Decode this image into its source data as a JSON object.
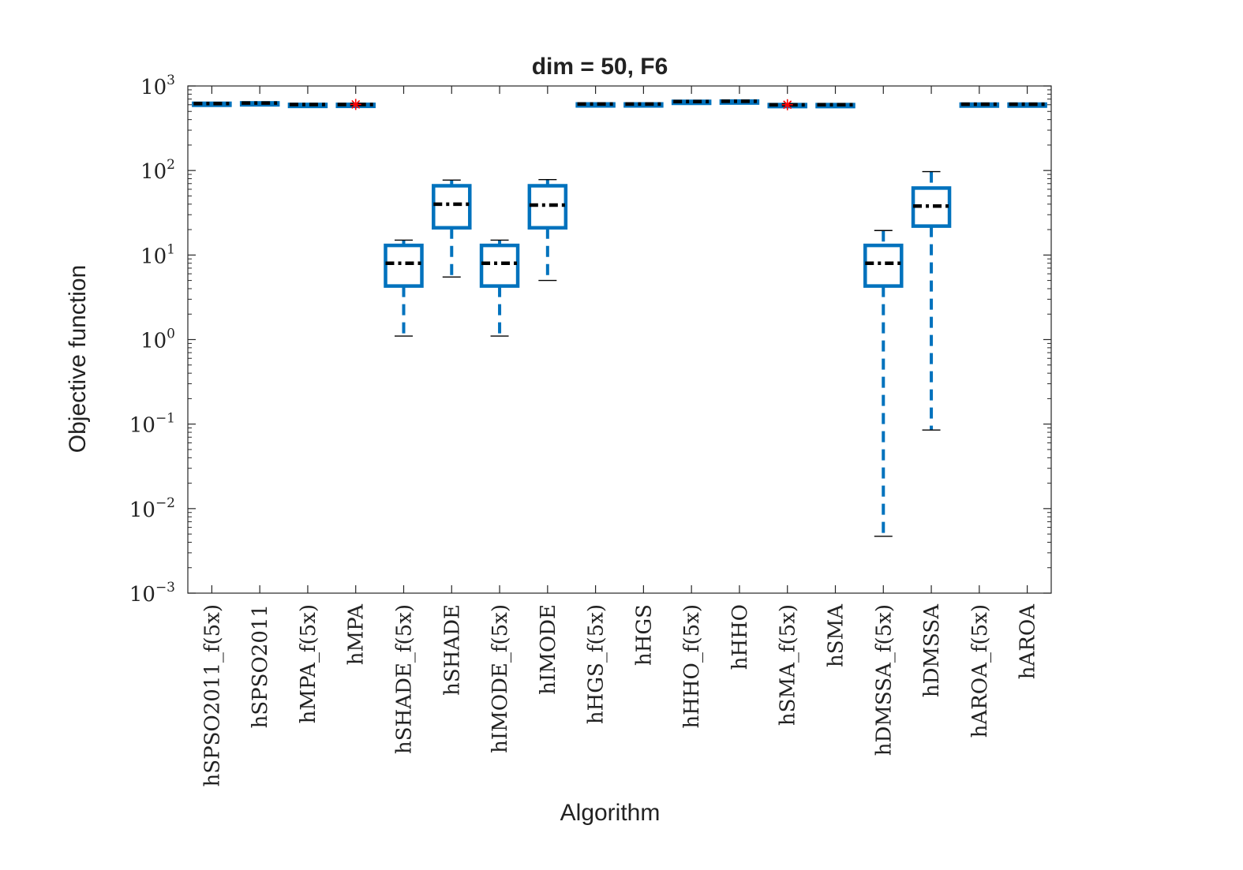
{
  "chart_data": {
    "type": "boxplot",
    "title": "dim = 50,  F6",
    "xlabel": "Algorithm",
    "ylabel": "Objective function",
    "yscale": "log",
    "ylim": [
      0.001,
      1000
    ],
    "yticks": [
      {
        "base": "10",
        "exp": "3"
      },
      {
        "base": "10",
        "exp": "2"
      },
      {
        "base": "10",
        "exp": "1"
      },
      {
        "base": "10",
        "exp": "0"
      },
      {
        "base": "10",
        "exp": "−1"
      },
      {
        "base": "10",
        "exp": "−2"
      },
      {
        "base": "10",
        "exp": "−3"
      }
    ],
    "box_color": "#0072BD",
    "median_color": "#000000",
    "outlier_color": "#FF0000",
    "categories": [
      "hSPSO2011_f(5x)",
      "hSPSO2011",
      "hMPA_f(5x)",
      "hMPA",
      "hSHADE_f(5x)",
      "hSHADE",
      "hIMODE_f(5x)",
      "hIMODE",
      "hHGS_f(5x)",
      "hHGS",
      "hHHO_f(5x)",
      "hHHO",
      "hSMA_f(5x)",
      "hSMA",
      "hDMSSA_f(5x)",
      "hDMSSA",
      "hAROA_f(5x)",
      "hAROA"
    ],
    "boxes": [
      {
        "min": 615,
        "q1": 616,
        "median": 620,
        "q3": 624,
        "max": 626,
        "outliers": []
      },
      {
        "min": 625,
        "q1": 626,
        "median": 628,
        "q3": 631,
        "max": 632,
        "outliers": []
      },
      {
        "min": 600,
        "q1": 601,
        "median": 603,
        "q3": 605,
        "max": 606,
        "outliers": []
      },
      {
        "min": 600,
        "q1": 601,
        "median": 604,
        "q3": 606,
        "max": 607,
        "outliers": [
          605
        ]
      },
      {
        "min": 1.1,
        "q1": 4.3,
        "median": 8,
        "q3": 13,
        "max": 15,
        "outliers": []
      },
      {
        "min": 5.5,
        "q1": 21,
        "median": 40,
        "q3": 66,
        "max": 77,
        "outliers": []
      },
      {
        "min": 1.1,
        "q1": 4.3,
        "median": 8,
        "q3": 13,
        "max": 15,
        "outliers": []
      },
      {
        "min": 5,
        "q1": 21,
        "median": 39,
        "q3": 66,
        "max": 78,
        "outliers": []
      },
      {
        "min": 608,
        "q1": 609,
        "median": 611,
        "q3": 613,
        "max": 614,
        "outliers": []
      },
      {
        "min": 608,
        "q1": 609,
        "median": 611,
        "q3": 613,
        "max": 614,
        "outliers": []
      },
      {
        "min": 650,
        "q1": 652,
        "median": 655,
        "q3": 658,
        "max": 660,
        "outliers": []
      },
      {
        "min": 655,
        "q1": 657,
        "median": 660,
        "q3": 663,
        "max": 665,
        "outliers": []
      },
      {
        "min": 595,
        "q1": 596,
        "median": 599,
        "q3": 602,
        "max": 603,
        "outliers": [
          600
        ]
      },
      {
        "min": 597,
        "q1": 598,
        "median": 600,
        "q3": 602,
        "max": 603,
        "outliers": []
      },
      {
        "min": 0.0047,
        "q1": 4.3,
        "median": 8,
        "q3": 13,
        "max": 19.5,
        "outliers": []
      },
      {
        "min": 0.085,
        "q1": 22,
        "median": 38,
        "q3": 62,
        "max": 97,
        "outliers": []
      },
      {
        "min": 605,
        "q1": 606,
        "median": 608,
        "q3": 610,
        "max": 611,
        "outliers": []
      },
      {
        "min": 605,
        "q1": 606,
        "median": 608,
        "q3": 610,
        "max": 611,
        "outliers": []
      }
    ]
  }
}
